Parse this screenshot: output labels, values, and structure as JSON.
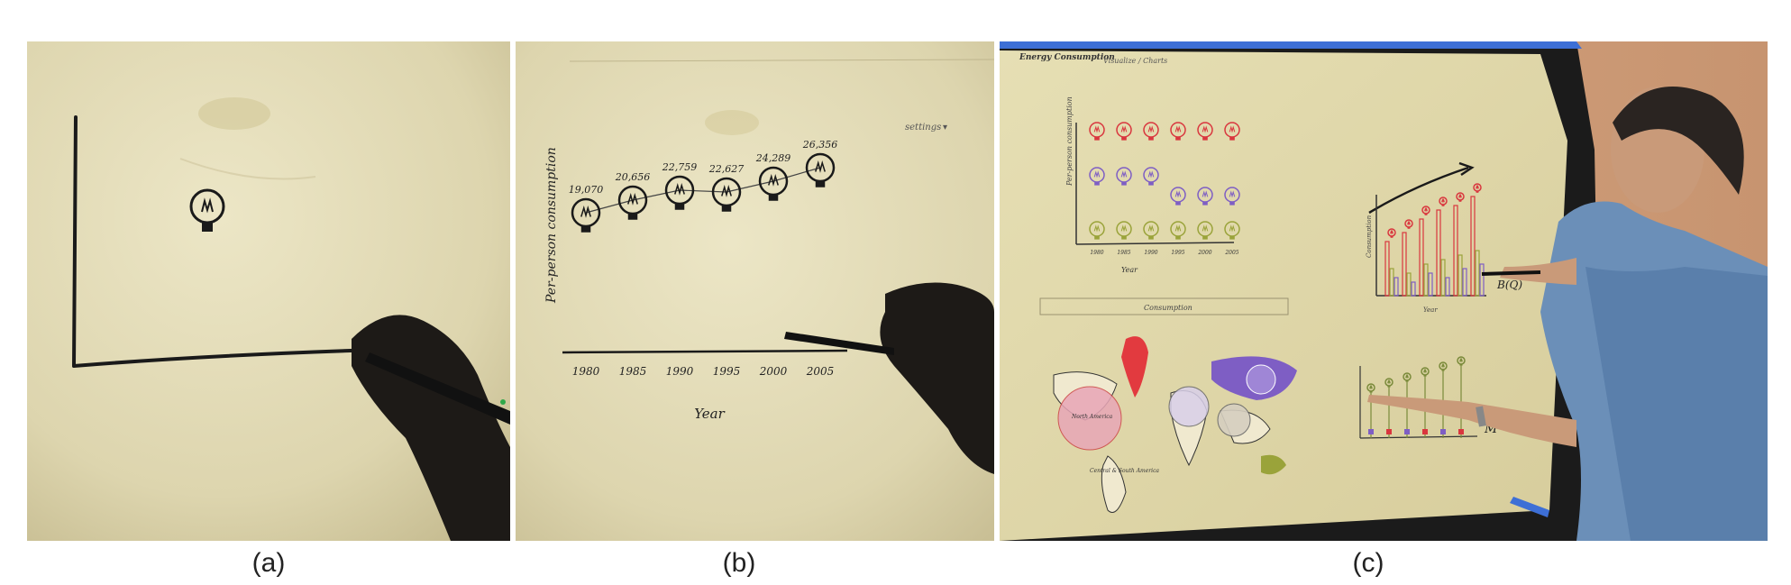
{
  "captions": {
    "a": "(a)",
    "b": "(b)",
    "c": "(c)"
  },
  "panel_b": {
    "y_axis_label": "Per-person consumption",
    "x_axis_label": "Year",
    "settings_label": "settings",
    "years": [
      "1980",
      "1985",
      "1990",
      "1995",
      "2000",
      "2005"
    ],
    "values": [
      "19,070",
      "20,656",
      "22,759",
      "22,627",
      "24,289",
      "26,356"
    ]
  },
  "panel_c": {
    "app_title": "Energy Consumption",
    "tab_label": "Visualize / Charts",
    "left_chart_y_label": "Per-person consumption",
    "left_chart_x_label": "Year",
    "left_chart_years": [
      "1980",
      "1985",
      "1990",
      "1995",
      "2000",
      "2005"
    ],
    "dropdown_label": "Consumption",
    "map_label_north_america": "North America",
    "map_label_central_south_america": "Central & South America",
    "bar_chart_y_label": "Consumption",
    "bar_chart_x_label": "Year",
    "handwritten_note_b": "B(Q)",
    "handwritten_note_m": "M"
  },
  "colors": {
    "paper": "#e3dcb8",
    "ink": "#1a1a1a",
    "red": "#d9363e",
    "purple": "#7e5ec4",
    "olive": "#9aa33a",
    "bezel": "#1b1b1b"
  }
}
